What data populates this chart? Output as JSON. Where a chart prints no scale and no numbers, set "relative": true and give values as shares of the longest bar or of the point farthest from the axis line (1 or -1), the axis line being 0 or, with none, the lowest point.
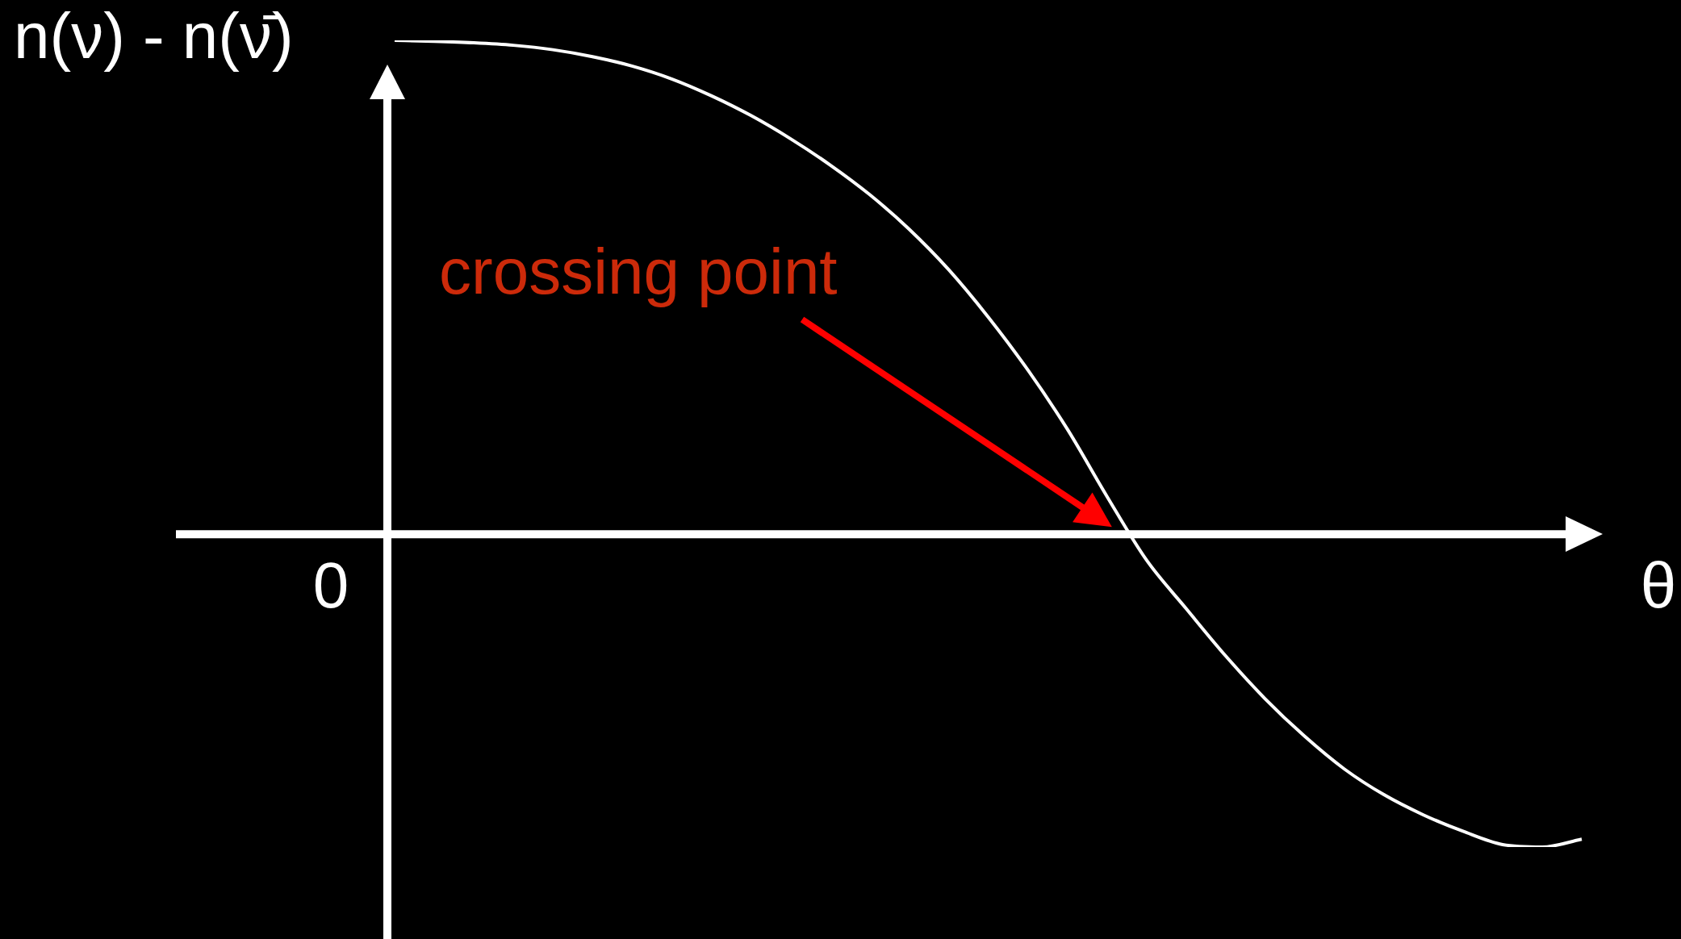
{
  "chart_data": {
    "type": "line",
    "ylabel": "n(ν) - n(ν̄)",
    "xlabel": "θ",
    "relative": true,
    "categories": [
      null,
      null,
      null,
      null,
      null,
      null,
      null,
      null,
      null,
      null,
      null,
      null,
      null,
      null,
      null,
      null,
      null,
      null,
      null,
      null,
      null,
      null,
      null,
      null,
      null,
      null,
      null,
      null,
      null,
      null,
      null
    ],
    "series": [
      {
        "color": "#ffffff",
        "values": [
          1,
          0.998,
          0.995,
          0.99,
          0.981,
          0.967,
          0.948,
          0.922,
          0.888,
          0.848,
          0.801,
          0.748,
          0.688,
          0.618,
          0.536,
          0.44,
          0.333,
          0.213,
          0.077,
          -0.052,
          -0.15,
          -0.246,
          -0.333,
          -0.409,
          -0.475,
          -0.527,
          -0.568,
          -0.601,
          -0.628,
          -0.633,
          -0.617
        ]
      }
    ],
    "annotations": [
      "crossing point",
      "0"
    ]
  }
}
